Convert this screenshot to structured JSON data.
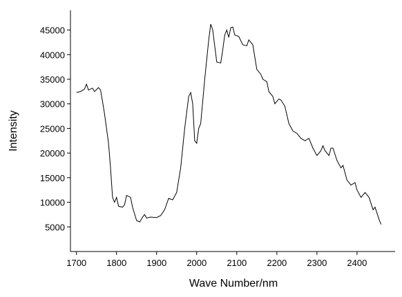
{
  "chart_data": {
    "type": "line",
    "x_label": "Wave Number/nm",
    "y_label": "Intensity",
    "x": [
      1700,
      1710,
      1720,
      1725,
      1730,
      1740,
      1745,
      1755,
      1760,
      1765,
      1770,
      1780,
      1785,
      1790,
      1795,
      1800,
      1805,
      1815,
      1820,
      1825,
      1835,
      1840,
      1850,
      1858,
      1865,
      1870,
      1875,
      1885,
      1900,
      1910,
      1920,
      1930,
      1940,
      1950,
      1960,
      1970,
      1980,
      1985,
      1990,
      1995,
      2000,
      2005,
      2010,
      2020,
      2030,
      2035,
      2040,
      2050,
      2060,
      2065,
      2070,
      2075,
      2080,
      2085,
      2090,
      2095,
      2105,
      2115,
      2125,
      2130,
      2140,
      2150,
      2160,
      2165,
      2175,
      2180,
      2190,
      2195,
      2205,
      2210,
      2220,
      2230,
      2240,
      2250,
      2260,
      2270,
      2280,
      2290,
      2300,
      2310,
      2315,
      2320,
      2330,
      2335,
      2340,
      2350,
      2360,
      2365,
      2375,
      2385,
      2395,
      2400,
      2410,
      2420,
      2430,
      2440,
      2445,
      2455,
      2460
    ],
    "series": [
      {
        "color": "#000000",
        "values": [
          32300,
          32500,
          33000,
          34000,
          32800,
          33200,
          32500,
          33300,
          32800,
          30500,
          28000,
          22000,
          17000,
          11000,
          10000,
          11000,
          9200,
          9000,
          9500,
          11400,
          11000,
          9000,
          6300,
          6000,
          7000,
          7500,
          6800,
          7000,
          6900,
          7300,
          8500,
          10800,
          10500,
          12000,
          17000,
          25000,
          31500,
          32300,
          30000,
          22500,
          22000,
          25000,
          26000,
          35000,
          43000,
          46200,
          45000,
          38500,
          38300,
          41000,
          44000,
          45000,
          43500,
          45500,
          45600,
          44000,
          43700,
          42000,
          41800,
          43000,
          42000,
          37000,
          36000,
          35000,
          34500,
          32500,
          31500,
          30000,
          31000,
          30800,
          29500,
          26000,
          24500,
          24000,
          23000,
          22500,
          23000,
          21000,
          19500,
          20500,
          21500,
          20500,
          19500,
          21000,
          21000,
          18500,
          17000,
          17500,
          14500,
          13500,
          14000,
          12500,
          11000,
          12000,
          11000,
          8500,
          9000,
          6500,
          5500
        ]
      }
    ],
    "xlim": [
      1685,
      2495
    ],
    "ylim": [
      0,
      49000
    ],
    "xticks": [
      1700,
      1800,
      1900,
      2000,
      2100,
      2200,
      2300,
      2400
    ],
    "yticks": [
      5000,
      10000,
      15000,
      20000,
      25000,
      30000,
      35000,
      40000,
      45000
    ]
  }
}
